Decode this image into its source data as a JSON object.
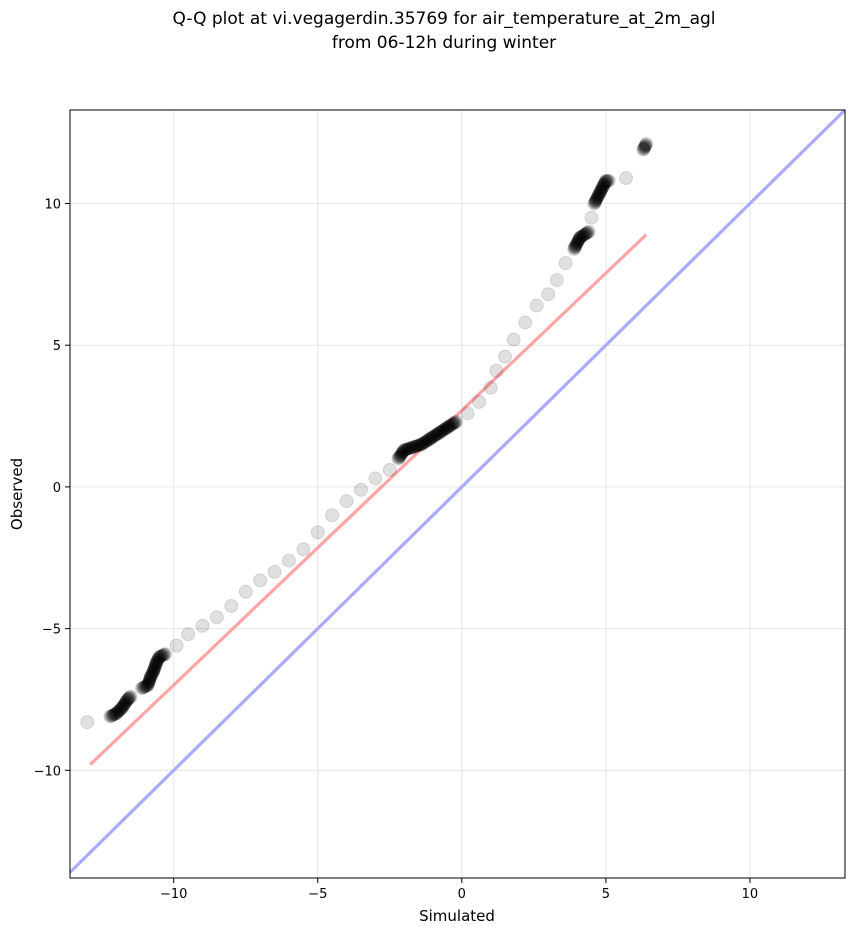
{
  "chart_data": {
    "type": "scatter",
    "title_line1": "Q-Q plot at vi.vegagerdin.35769 for air_temperature_at_2m_agl",
    "title_line2": "from 06-12h during winter",
    "xlabel": "Simulated",
    "ylabel": "Observed",
    "xlim": [
      -13.6,
      13.3
    ],
    "ylim": [
      -13.8,
      13.3
    ],
    "xticks": [
      -10,
      -5,
      0,
      5,
      10
    ],
    "yticks": [
      -10,
      -5,
      0,
      5,
      10
    ],
    "xtick_labels": [
      "−10",
      "−5",
      "0",
      "5",
      "10"
    ],
    "ytick_labels": [
      "−10",
      "−5",
      "0",
      "5",
      "10"
    ],
    "grid": true,
    "series": [
      {
        "kind": "qq-points",
        "color": "#000000",
        "x": [
          -13.0,
          -12.2,
          -12.0,
          -11.8,
          -11.6,
          -11.5,
          -11.1,
          -10.9,
          -10.8,
          -10.7,
          -10.6,
          -10.5,
          -10.3,
          -9.9,
          -9.5,
          -9.0,
          -8.5,
          -8.0,
          -7.5,
          -7.0,
          -6.5,
          -6.0,
          -5.5,
          -5.0,
          -4.5,
          -4.0,
          -3.5,
          -3.0,
          -2.5,
          -2.2,
          -2.0,
          -1.7,
          -1.4,
          -1.1,
          -0.8,
          -0.5,
          -0.2,
          0.2,
          0.6,
          1.0,
          1.2,
          1.5,
          1.8,
          2.2,
          2.6,
          3.0,
          3.3,
          3.6,
          3.9,
          4.1,
          4.4,
          4.5,
          4.6,
          4.8,
          4.9,
          5.0,
          5.1,
          5.7,
          6.3,
          6.4
        ],
        "y": [
          -8.3,
          -8.1,
          -8.0,
          -7.8,
          -7.5,
          -7.4,
          -7.1,
          -7.0,
          -6.7,
          -6.5,
          -6.2,
          -6.0,
          -5.9,
          -5.6,
          -5.2,
          -4.9,
          -4.6,
          -4.2,
          -3.7,
          -3.3,
          -3.0,
          -2.6,
          -2.2,
          -1.6,
          -1.0,
          -0.5,
          -0.1,
          0.3,
          0.6,
          1.0,
          1.3,
          1.4,
          1.5,
          1.7,
          1.9,
          2.1,
          2.3,
          2.6,
          3.0,
          3.5,
          4.1,
          4.6,
          5.2,
          5.8,
          6.4,
          6.8,
          7.3,
          7.9,
          8.4,
          8.8,
          9.0,
          9.5,
          10.0,
          10.4,
          10.6,
          10.8,
          10.8,
          10.9,
          11.9,
          12.1
        ],
        "opacity": 0.12
      },
      {
        "kind": "fit-line",
        "color": "#ff7f7f",
        "x": [
          -12.9,
          6.4
        ],
        "y": [
          -9.8,
          8.9
        ]
      },
      {
        "kind": "identity-line",
        "color": "#aaaaff",
        "x": [
          -13.6,
          13.3
        ],
        "y": [
          -13.6,
          13.3
        ]
      }
    ]
  }
}
